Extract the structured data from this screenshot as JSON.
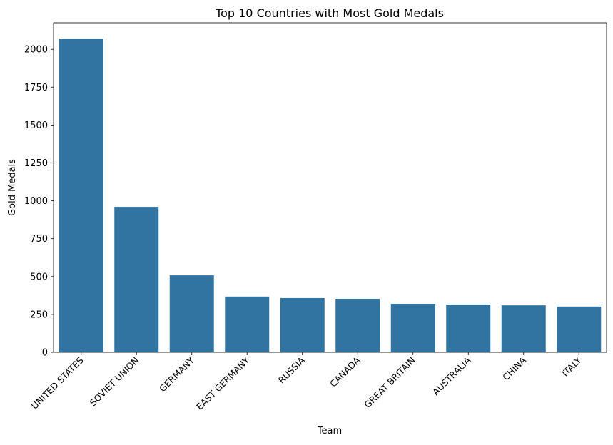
{
  "chart_data": {
    "type": "bar",
    "title": "Top 10 Countries with Most Gold Medals",
    "xlabel": "Team",
    "ylabel": "Gold Medals",
    "categories": [
      "UNITED STATES",
      "SOVIET UNION",
      "GERMANY",
      "EAST GERMANY",
      "RUSSIA",
      "CANADA",
      "GREAT BRITAIN",
      "AUSTRALIA",
      "CHINA",
      "ITALY"
    ],
    "values": [
      2070,
      960,
      508,
      368,
      358,
      353,
      320,
      315,
      310,
      302
    ],
    "yticks": [
      0,
      250,
      500,
      750,
      1000,
      1250,
      1500,
      1750,
      2000
    ],
    "ylim": [
      0,
      2175
    ],
    "grid": false,
    "legend": "none",
    "bar_color": "#3274a1"
  }
}
